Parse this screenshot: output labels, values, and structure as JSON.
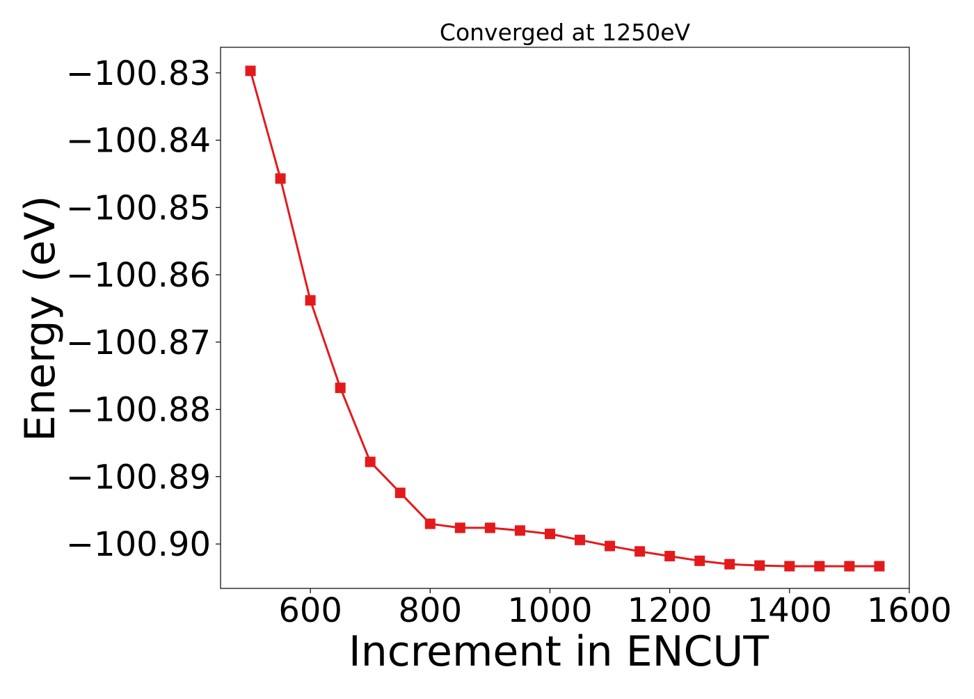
{
  "chart_data": {
    "type": "line",
    "title": "Converged at 1250eV",
    "xlabel": "Increment in ENCUT",
    "ylabel": "Energy (eV)",
    "xlim": [
      450,
      1600
    ],
    "ylim": [
      -100.9066,
      -100.8262
    ],
    "xticks": [
      600,
      800,
      1000,
      1200,
      1400,
      1600
    ],
    "xtick_labels": [
      "600",
      "800",
      "1000",
      "1200",
      "1400",
      "1600"
    ],
    "yticks": [
      -100.83,
      -100.84,
      -100.85,
      -100.86,
      -100.87,
      -100.88,
      -100.89,
      -100.9
    ],
    "ytick_labels": [
      "−100.83",
      "−100.84",
      "−100.85",
      "−100.86",
      "−100.87",
      "−100.88",
      "−100.89",
      "−100.90"
    ],
    "grid": false,
    "series": [
      {
        "color": "#e31a1c",
        "marker": "square",
        "x": [
          500,
          550,
          600,
          650,
          700,
          750,
          800,
          850,
          900,
          950,
          1000,
          1050,
          1100,
          1150,
          1200,
          1250,
          1300,
          1350,
          1400,
          1450,
          1500,
          1550
        ],
        "y": [
          -100.8297,
          -100.8457,
          -100.8638,
          -100.8768,
          -100.8878,
          -100.8924,
          -100.897,
          -100.8976,
          -100.8976,
          -100.898,
          -100.8985,
          -100.8994,
          -100.9003,
          -100.9011,
          -100.9018,
          -100.9025,
          -100.903,
          -100.9032,
          -100.9033,
          -100.9033,
          -100.9033,
          -100.9033
        ]
      }
    ]
  }
}
